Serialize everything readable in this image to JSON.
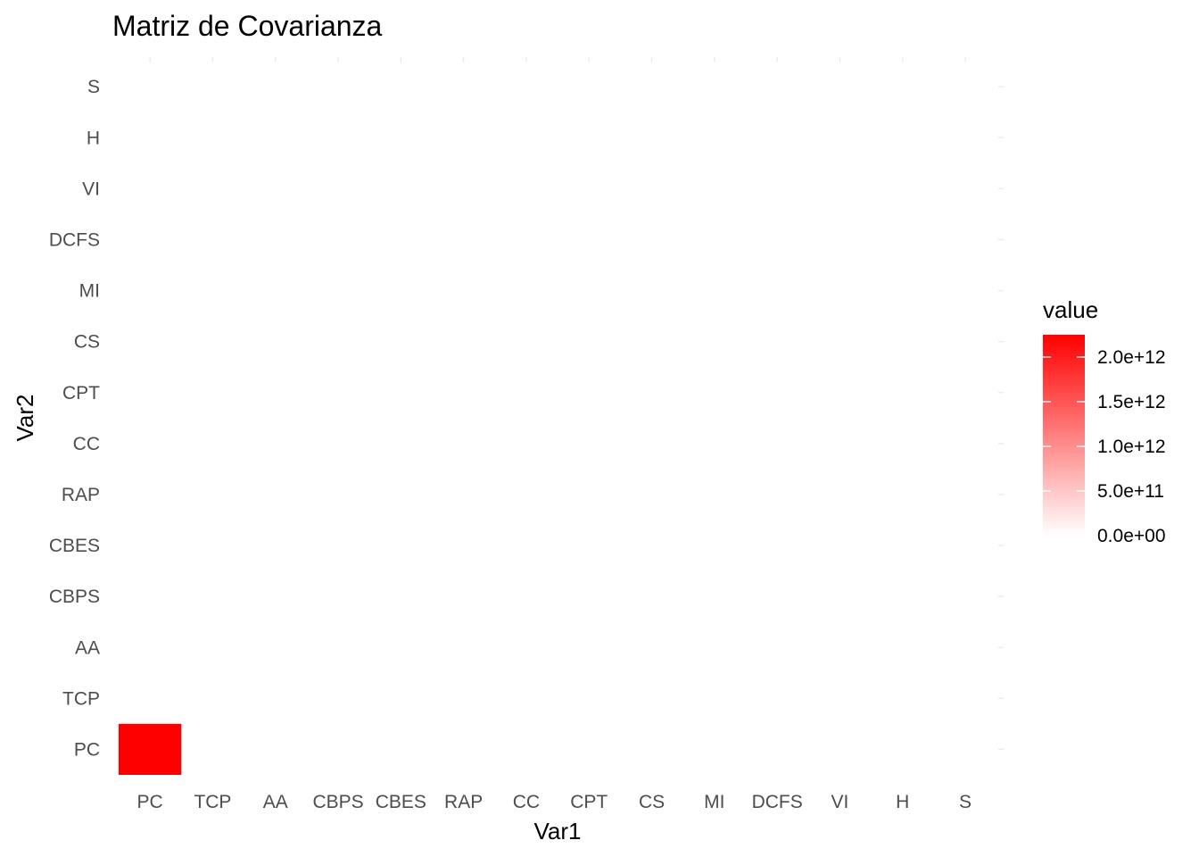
{
  "chart_data": {
    "type": "heatmap",
    "title": "Matriz de Covarianza",
    "xlabel": "Var1",
    "ylabel": "Var2",
    "x_categories": [
      "PC",
      "TCP",
      "AA",
      "CBPS",
      "CBES",
      "RAP",
      "CC",
      "CPT",
      "CS",
      "MI",
      "DCFS",
      "VI",
      "H",
      "S"
    ],
    "y_categories": [
      "PC",
      "TCP",
      "AA",
      "CBPS",
      "CBES",
      "RAP",
      "CC",
      "CPT",
      "CS",
      "MI",
      "DCFS",
      "VI",
      "H",
      "S"
    ],
    "cells": [
      {
        "x": "PC",
        "y": "PC",
        "value": 2250000000000.0
      }
    ],
    "other_cells_value_approx": 0,
    "legend": {
      "title": "value",
      "position": "right",
      "low_color": "#ffffff",
      "high_color": "#ff0000",
      "min": 0,
      "max": 2250000000000.0,
      "tick_values": [
        0,
        500000000000.0,
        1000000000000.0,
        1500000000000.0,
        2000000000000.0
      ],
      "tick_labels": [
        "0.0e+00",
        "5.0e+11",
        "1.0e+12",
        "1.5e+12",
        "2.0e+12"
      ]
    },
    "grid": false
  }
}
